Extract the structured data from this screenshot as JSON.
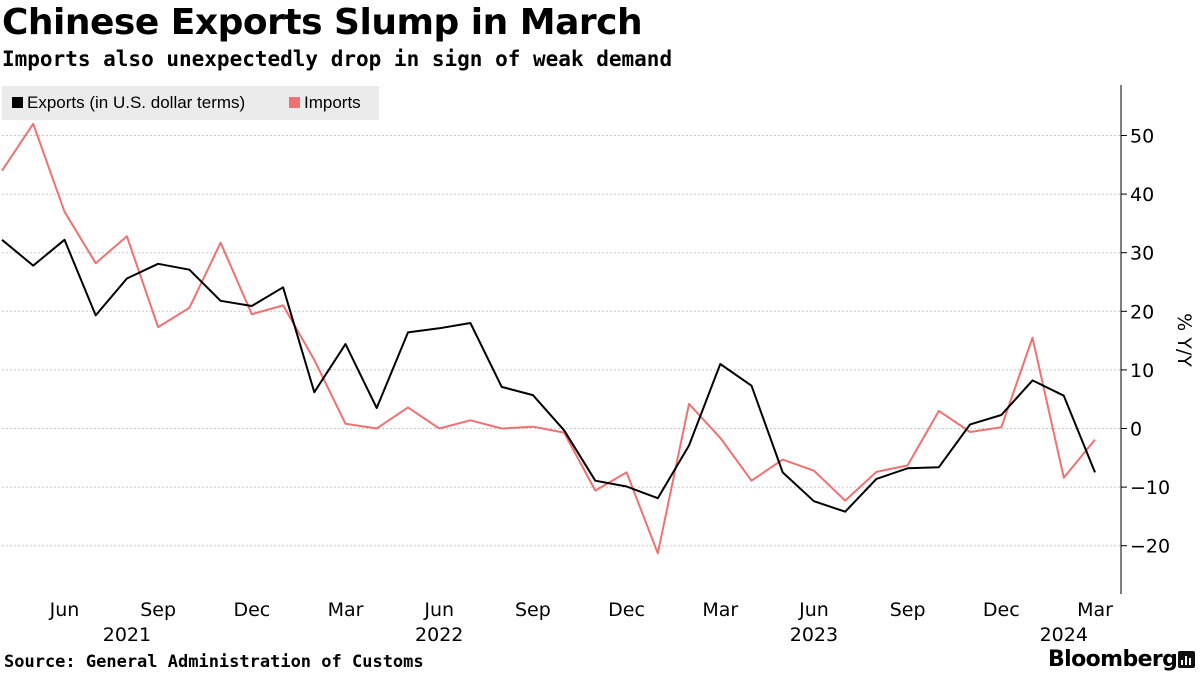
{
  "header": {
    "title": "Chinese Exports Slump in March",
    "subtitle": "Imports also unexpectedly drop in sign of weak demand"
  },
  "footer": {
    "source": "Source: General Administration of Customs",
    "brand": "Bloomberg"
  },
  "colors": {
    "exports": "#000000",
    "imports": "#f07171",
    "grid": "#c8c8c8",
    "legend_bg": "#ebebeb"
  },
  "chart_data": {
    "type": "line",
    "title": "Chinese Exports Slump in March",
    "subtitle": "Imports also unexpectedly drop in sign of weak demand",
    "ylabel": "% Y/Y",
    "ylim": [
      -28,
      59
    ],
    "yticks": [
      50,
      40,
      30,
      20,
      10,
      0,
      -10,
      -20
    ],
    "grid": true,
    "legend_position": "top-left",
    "x": [
      "2021-04",
      "2021-05",
      "2021-06",
      "2021-07",
      "2021-08",
      "2021-09",
      "2021-10",
      "2021-11",
      "2021-12",
      "2022-01",
      "2022-02",
      "2022-03",
      "2022-04",
      "2022-05",
      "2022-06",
      "2022-07",
      "2022-08",
      "2022-09",
      "2022-10",
      "2022-11",
      "2022-12",
      "2023-01",
      "2023-02",
      "2023-03",
      "2023-04",
      "2023-05",
      "2023-06",
      "2023-07",
      "2023-08",
      "2023-09",
      "2023-10",
      "2023-11",
      "2023-12",
      "2024-01",
      "2024-02",
      "2024-03"
    ],
    "xticks": [
      {
        "label": "Jun",
        "index": 2
      },
      {
        "label": "Sep",
        "index": 5
      },
      {
        "label": "Dec",
        "index": 8
      },
      {
        "label": "Mar",
        "index": 11
      },
      {
        "label": "Jun",
        "index": 14
      },
      {
        "label": "Sep",
        "index": 17
      },
      {
        "label": "Dec",
        "index": 20
      },
      {
        "label": "Mar",
        "index": 23
      },
      {
        "label": "Jun",
        "index": 26
      },
      {
        "label": "Sep",
        "index": 29
      },
      {
        "label": "Dec",
        "index": 32
      },
      {
        "label": "Mar",
        "index": 35
      }
    ],
    "year_labels": [
      {
        "label": "2021",
        "index": 4
      },
      {
        "label": "2022",
        "index": 14
      },
      {
        "label": "2023",
        "index": 26
      },
      {
        "label": "2024",
        "index": 34
      }
    ],
    "series": [
      {
        "name": "Exports (in U.S. dollar terms)",
        "color": "#000000",
        "values": [
          32.2,
          27.8,
          32.2,
          19.3,
          25.6,
          28.1,
          27.1,
          21.8,
          20.9,
          24.1,
          6.2,
          14.4,
          3.5,
          16.4,
          17.1,
          18.0,
          7.1,
          5.7,
          -0.3,
          -8.9,
          -9.9,
          -11.9,
          -2.9,
          11.0,
          7.3,
          -7.5,
          -12.4,
          -14.2,
          -8.6,
          -6.8,
          -6.6,
          0.7,
          2.3,
          8.2,
          5.6,
          -7.5
        ]
      },
      {
        "name": "Imports",
        "color": "#f07171",
        "values": [
          44.0,
          52.0,
          37.0,
          28.2,
          32.8,
          17.3,
          20.6,
          31.7,
          19.5,
          21.0,
          11.7,
          0.8,
          0.0,
          3.6,
          0.0,
          1.4,
          0.0,
          0.3,
          -0.7,
          -10.6,
          -7.5,
          -21.3,
          4.2,
          -1.6,
          -8.9,
          -5.3,
          -7.2,
          -12.3,
          -7.4,
          -6.3,
          3.0,
          -0.6,
          0.2,
          15.5,
          -8.4,
          -1.9
        ]
      }
    ]
  }
}
